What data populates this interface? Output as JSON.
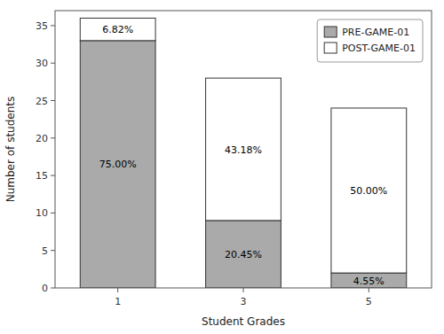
{
  "chart_data": {
    "type": "bar",
    "stacked": true,
    "data_labels": true,
    "xlabel": "Student Grades",
    "ylabel": "Number of students",
    "categories": [
      "1",
      "3",
      "5"
    ],
    "series": [
      {
        "name": "PRE-GAME-01",
        "color": "#aaaaaa",
        "values": [
          33,
          9,
          2
        ],
        "value_labels": [
          "75.00%",
          "20.45%",
          "4.55%"
        ]
      },
      {
        "name": "POST-GAME-01",
        "color": "#ffffff",
        "values": [
          3,
          19,
          22
        ],
        "value_labels": [
          "6.82%",
          "43.18%",
          "50.00%"
        ]
      }
    ],
    "ylim": [
      0,
      37
    ],
    "yticks": [
      0,
      5,
      10,
      15,
      20,
      25,
      30,
      35
    ],
    "grid": false,
    "legend": "upper right"
  }
}
